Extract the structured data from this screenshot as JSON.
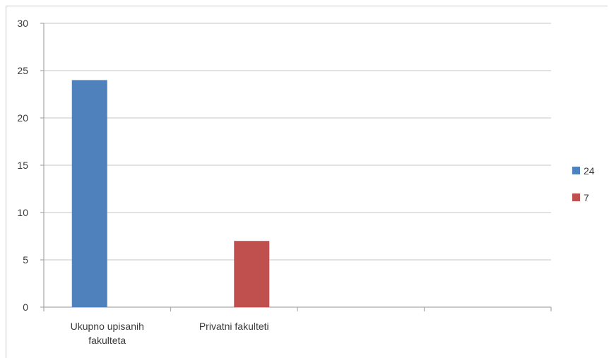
{
  "chart_data": {
    "type": "bar",
    "categories": [
      [
        "Ukupno upisanih",
        "fakulteta"
      ],
      [
        "Privatni fakulteti"
      ],
      [
        ""
      ],
      [
        ""
      ]
    ],
    "series": [
      {
        "name": "24",
        "color": "#4f81bd",
        "values": [
          24,
          null,
          null,
          null
        ]
      },
      {
        "name": "7",
        "color": "#c0504d",
        "values": [
          null,
          7,
          null,
          null
        ]
      }
    ],
    "yticks": [
      "0",
      "5",
      "10",
      "15",
      "20",
      "25",
      "30"
    ],
    "ylim": [
      0,
      30
    ],
    "grid": true,
    "legend_position": "right"
  }
}
